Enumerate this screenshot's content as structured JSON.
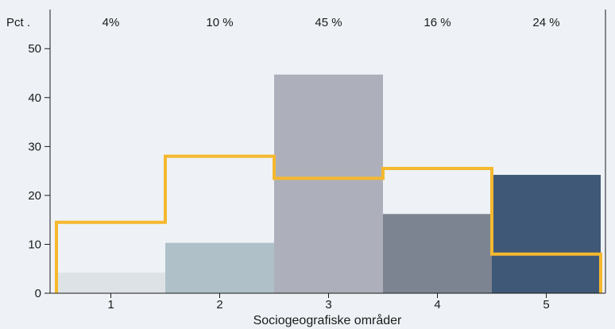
{
  "chart_data": {
    "type": "bar",
    "categories": [
      "1",
      "2",
      "3",
      "4",
      "5"
    ],
    "values": [
      4.2,
      10.3,
      44.7,
      16.2,
      24.2
    ],
    "bar_colors": [
      "#dde2e6",
      "#afc0c8",
      "#adb0bb",
      "#7c8491",
      "#3f5877"
    ],
    "top_labels": [
      "4%",
      "10 %",
      "45 %",
      "16 %",
      "24 %"
    ],
    "step_line": {
      "values": [
        14.5,
        28.0,
        23.5,
        25.5,
        8.0
      ],
      "color": "#f5b82e"
    },
    "ylabel": "Pct .",
    "xlabel": "Sociogeografiske områder",
    "yticks": [
      0,
      10,
      20,
      30,
      40,
      50
    ],
    "ylim": [
      0,
      58
    ],
    "grid": false,
    "legend": "none"
  }
}
